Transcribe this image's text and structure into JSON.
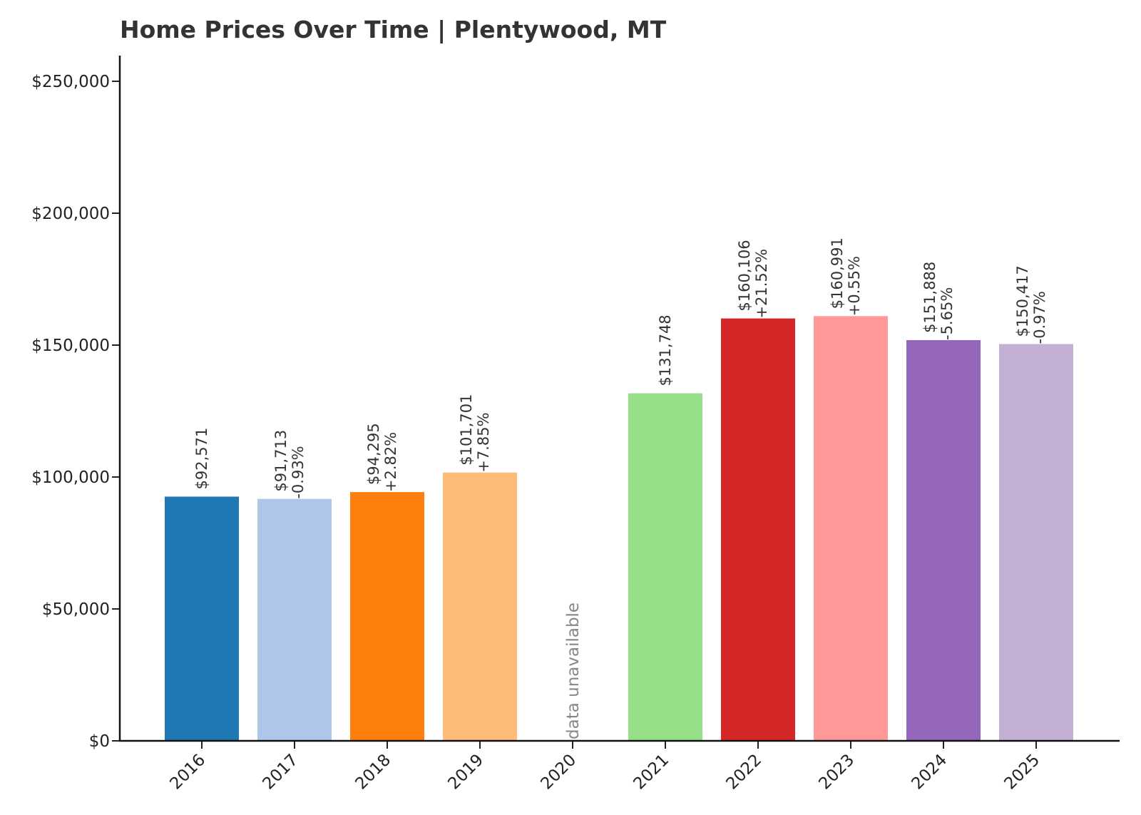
{
  "chart_data": {
    "type": "bar",
    "title": "Home Prices Over Time | Plentywood, MT",
    "xlabel": "",
    "ylabel": "",
    "ylim": [
      0,
      260000
    ],
    "yticks": [
      0,
      50000,
      100000,
      150000,
      200000,
      250000
    ],
    "ytick_labels": [
      "$0",
      "$50,000",
      "$100,000",
      "$150,000",
      "$200,000",
      "$250,000"
    ],
    "grid": false,
    "categories": [
      "2016",
      "2017",
      "2018",
      "2019",
      "2020",
      "2021",
      "2022",
      "2023",
      "2024",
      "2025"
    ],
    "values": [
      92571,
      91713,
      94295,
      101701,
      null,
      131748,
      160106,
      160991,
      151888,
      150417
    ],
    "value_labels": [
      "$92,571",
      "$91,713",
      "$94,295",
      "$101,701",
      "",
      "$131,748",
      "$160,106",
      "$160,991",
      "$151,888",
      "$150,417"
    ],
    "change_labels": [
      "",
      "-0.93%",
      "+2.82%",
      "+7.85%",
      "",
      "",
      "+21.52%",
      "+0.55%",
      "-5.65%",
      "-0.97%"
    ],
    "missing_label": "data unavailable",
    "colors": [
      "#1f77b4",
      "#aec7e8",
      "#ff7f0e",
      "#ffbb78",
      "#cccccc",
      "#98df8a",
      "#d62728",
      "#ff9896",
      "#9467bd",
      "#c5b0d5"
    ]
  }
}
